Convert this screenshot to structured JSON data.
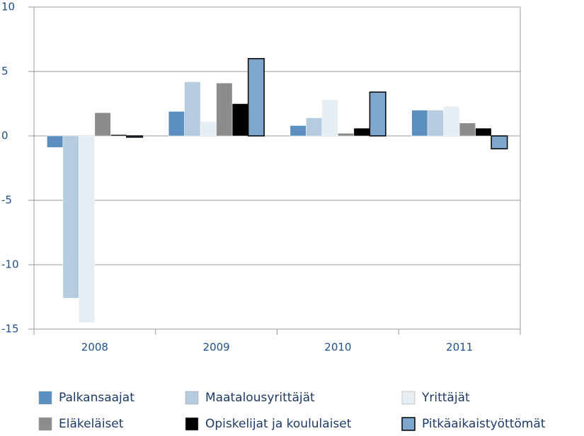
{
  "chart_data": {
    "type": "bar",
    "categories": [
      "2008",
      "2009",
      "2010",
      "2011"
    ],
    "series": [
      {
        "name": "Palkansaajat",
        "color": "#5b8fc0",
        "values": [
          -0.9,
          1.9,
          0.8,
          2.0
        ]
      },
      {
        "name": "Maatalousyrittäjät",
        "color": "#b5cbe0",
        "values": [
          -12.6,
          4.2,
          1.4,
          2.0
        ]
      },
      {
        "name": "Yrittäjät",
        "color": "#e6edf3",
        "values": [
          -14.5,
          1.1,
          2.8,
          2.3
        ]
      },
      {
        "name": "Eläkeläiset",
        "color": "#8c8c8c",
        "values": [
          1.8,
          4.1,
          0.2,
          1.0
        ]
      },
      {
        "name": "Opiskelijat ja koululaiset",
        "color": "#000000",
        "values": [
          0.1,
          2.5,
          0.6,
          0.6
        ]
      },
      {
        "name": "Pitkäaikaistyöttömät",
        "color": "#7fa6cc",
        "edgecolor": "#000000",
        "values": [
          -0.1,
          6.0,
          3.4,
          -1.0
        ]
      }
    ],
    "ylim": [
      -15,
      10
    ],
    "yticks": [
      -15,
      -10,
      -5,
      0,
      5,
      10
    ],
    "grid": true
  }
}
